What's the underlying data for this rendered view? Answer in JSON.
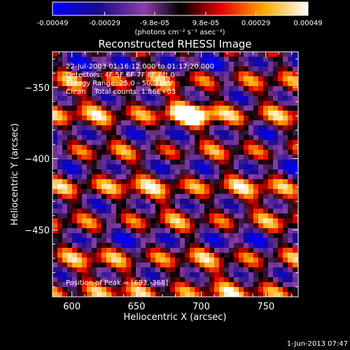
{
  "colorbar": {
    "tick_labels": [
      "-0.00049",
      "-0.00029",
      "-9.8e-05",
      "9.8e-05",
      "0.00029",
      "0.00049"
    ],
    "tick_values": [
      -0.00049,
      -0.00029,
      -9.8e-05,
      9.8e-05,
      0.00029,
      0.00049
    ],
    "range": [
      -0.00049,
      0.00049
    ],
    "unit_label": "(photons cm⁻² s⁻¹ asec⁻²)",
    "colors": [
      "#0000ff",
      "#1a0a8a",
      "#8a3ea8",
      "#000000",
      "#e60000",
      "#ffaa00",
      "#ffffff"
    ]
  },
  "chart_data": {
    "type": "heatmap",
    "title": "Reconstructed RHESSI Image",
    "xlabel": "Heliocentric X (arcsec)",
    "ylabel": "Heliocentric Y (arcsec)",
    "xlim": [
      585,
      775
    ],
    "ylim": [
      -497,
      -325
    ],
    "x_ticks": [
      600,
      650,
      700,
      750
    ],
    "y_ticks": [
      -450,
      -400,
      -350
    ],
    "x_tick_labels": [
      "600",
      "650",
      "700",
      "750"
    ],
    "y_tick_labels": [
      "−450",
      "−400",
      "−350"
    ],
    "annotations": [
      "22-Jul-2003 01:16:12.000 to 01:17:20.000",
      "Detectors: 4F 5F 6F 7F 8F  Att 0",
      "Energy Range: 25.0 - 50.0 keV",
      "Clean    Total counts: 1.86E+03"
    ],
    "peak_label": "Position of Peak = [693,-368]",
    "peak_position": [
      693,
      -368
    ]
  },
  "footer": {
    "date": "1-Jun-2013 07:47"
  }
}
